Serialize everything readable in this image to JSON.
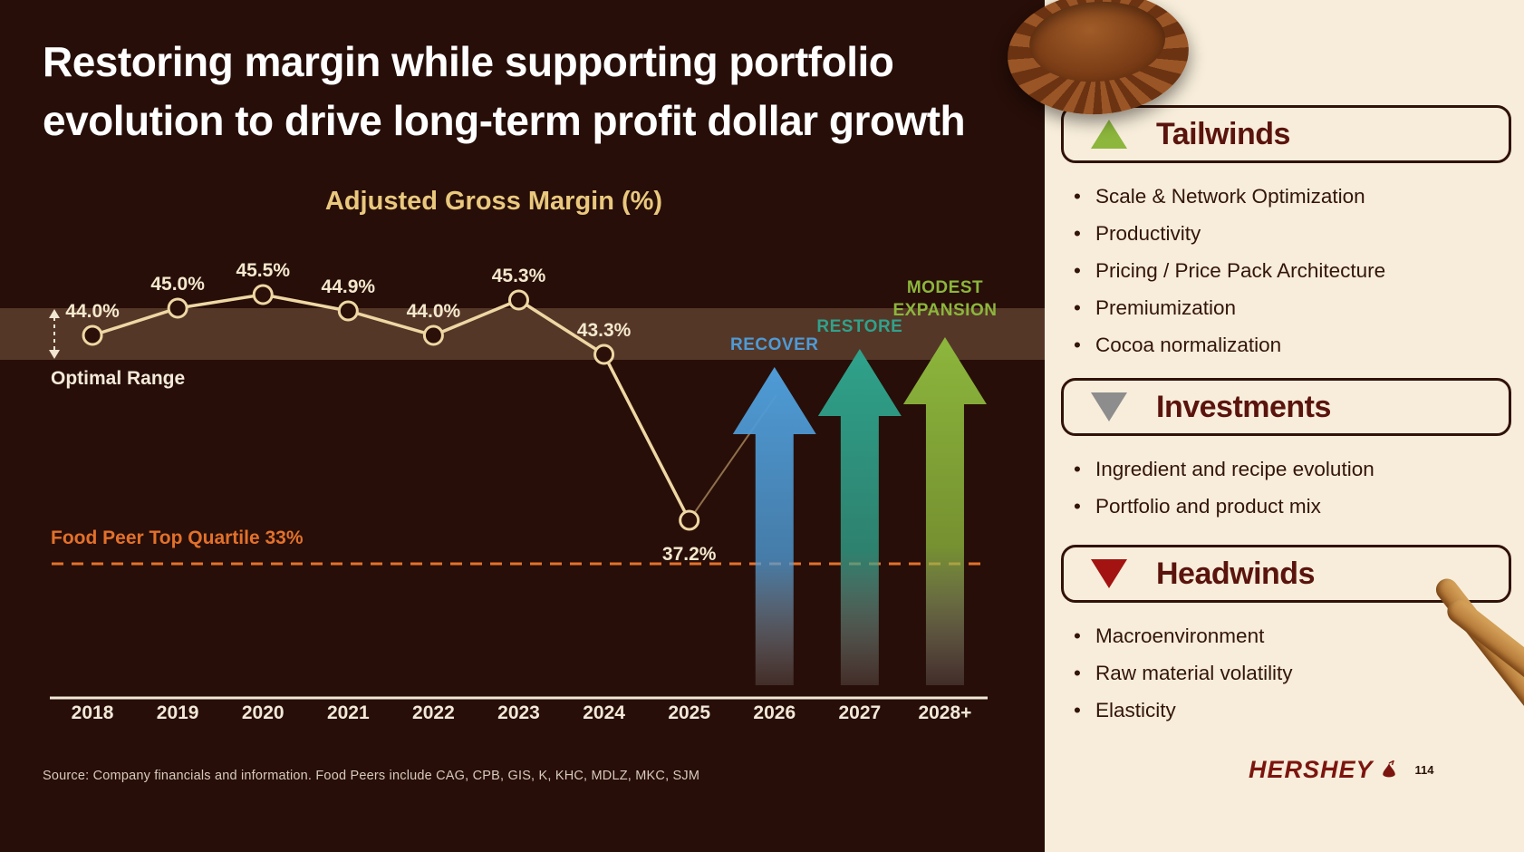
{
  "slide": {
    "title_line1": "Restoring margin while supporting portfolio",
    "title_line2": "evolution to drive long-term profit dollar growth",
    "source": "Source: Company financials and information. Food Peers include CAG, CPB, GIS, K, KHC, MDLZ, MKC, SJM",
    "brand": "HERSHEY",
    "page_number": "114"
  },
  "chart_data": {
    "type": "line",
    "title": "Adjusted Gross Margin (%)",
    "categories": [
      "2018",
      "2019",
      "2020",
      "2021",
      "2022",
      "2023",
      "2024",
      "2025",
      "2026",
      "2027",
      "2028+"
    ],
    "series": [
      {
        "name": "Adjusted Gross Margin (%)",
        "values": [
          44.0,
          45.0,
          45.5,
          44.9,
          44.0,
          45.3,
          43.3,
          37.2,
          null,
          null,
          null
        ]
      }
    ],
    "point_labels": [
      "44.0%",
      "45.0%",
      "45.5%",
      "44.9%",
      "44.0%",
      "45.3%",
      "43.3%",
      "37.2%"
    ],
    "ylim": [
      30,
      48
    ],
    "grid": false,
    "legend": "none",
    "optimal_range_label": "Optimal Range",
    "benchmark": {
      "label": "Food Peer Top Quartile 33%",
      "value": 33,
      "color": "#e2712b",
      "style": "dashed"
    },
    "projections": [
      {
        "category": "2026",
        "label": "RECOVER",
        "color": "#4e9bd6"
      },
      {
        "category": "2027",
        "label": "RESTORE",
        "color": "#2fa28b"
      },
      {
        "category": "2028+",
        "label": "MODEST EXPANSION",
        "color": "#8cb63c"
      }
    ]
  },
  "panel": {
    "sections": [
      {
        "title": "Tailwinds",
        "icon": "triangle-up",
        "icon_color": "#8cb63c",
        "items": [
          "Scale & Network Optimization",
          "Productivity",
          "Pricing / Price Pack Architecture",
          "Premiumization",
          "Cocoa normalization"
        ]
      },
      {
        "title": "Investments",
        "icon": "triangle-down",
        "icon_color": "#8d8d8d",
        "items": [
          "Ingredient and recipe evolution",
          "Portfolio and product mix"
        ]
      },
      {
        "title": "Headwinds",
        "icon": "triangle-down",
        "icon_color": "#a31311",
        "items": [
          "Macroenvironment",
          "Raw material volatility",
          "Elasticity"
        ]
      }
    ]
  },
  "colors": {
    "bg-dark": "#270e08",
    "panel-cream": "#f7edda",
    "line-tan": "#efd7a4",
    "title-gold": "#e9c87e",
    "accent-orange": "#e2712b",
    "accent-blue": "#4e9bd6",
    "accent-teal": "#2fa28b",
    "accent-green": "#8cb63c",
    "header-maroon": "#5a140d",
    "text-dark": "#33150a",
    "brand-red": "#7c150f"
  }
}
